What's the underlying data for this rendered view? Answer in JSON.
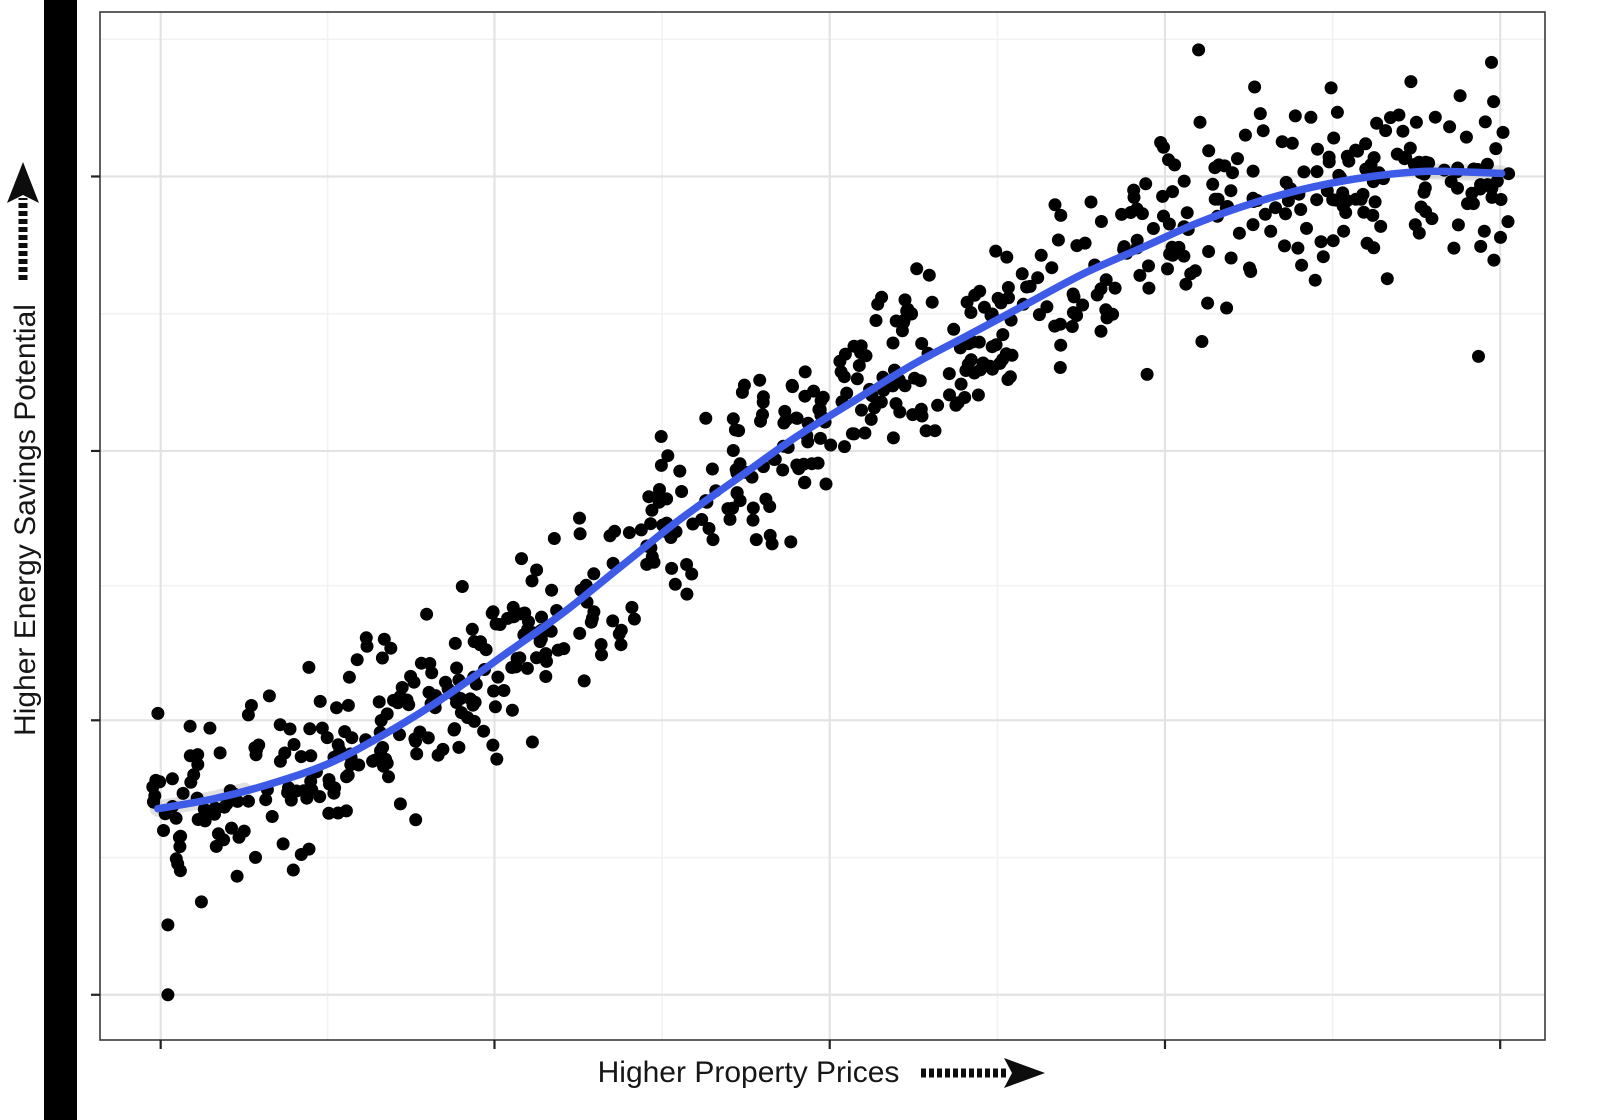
{
  "chart_data": {
    "type": "scatter",
    "title": "",
    "xlabel": "Higher Property Prices",
    "ylabel": "Higher Energy Savings Potential",
    "x_range": [
      0,
      100
    ],
    "y_range": [
      0,
      100
    ],
    "tick_labels_shown": false,
    "legend": "none",
    "grid": "major+minor",
    "axes_note": "conceptual axes: no numeric tick labels, hand-drawn arrows indicate direction of increase",
    "colors": {
      "point": "#000000",
      "trend": "#3E5BE8",
      "band": "#c9c9c9",
      "grid_major": "#e3e3e3",
      "grid_minor": "#f2f2f2",
      "panel_border": "#3a3a3a",
      "tick": "#222222"
    },
    "grid_positions": {
      "x_major": [
        4.2,
        27.3,
        50.5,
        73.7,
        96.9
      ],
      "x_minor": [
        15.75,
        38.9,
        62.1,
        85.3
      ],
      "y_major": [
        4.4,
        31.1,
        57.3,
        84.0
      ],
      "y_minor": [
        17.75,
        44.2,
        70.65,
        97.35
      ]
    },
    "trend": [
      [
        4,
        22.5
      ],
      [
        8,
        23.5
      ],
      [
        12,
        25
      ],
      [
        16,
        27
      ],
      [
        20,
        30
      ],
      [
        24,
        33.5
      ],
      [
        28,
        37.5
      ],
      [
        32,
        41.5
      ],
      [
        36,
        46
      ],
      [
        40,
        50.5
      ],
      [
        44,
        54.5
      ],
      [
        48,
        58.5
      ],
      [
        52,
        62
      ],
      [
        56,
        65.5
      ],
      [
        60,
        68.5
      ],
      [
        64,
        71.5
      ],
      [
        68,
        74.5
      ],
      [
        72,
        77
      ],
      [
        76,
        79.5
      ],
      [
        80,
        81.5
      ],
      [
        84,
        83
      ],
      [
        88,
        84
      ],
      [
        92,
        84.5
      ],
      [
        97,
        84.3
      ]
    ],
    "band_segments": [
      [
        4,
        10
      ],
      [
        91.5,
        97
      ]
    ],
    "scatter": {
      "n": 680,
      "seed": 42,
      "noise_sd": 4.3,
      "x_min": 3.5,
      "x_max": 97.5,
      "point_radius": 6.5,
      "outliers": [
        [
          4.7,
          11.2
        ],
        [
          4.7,
          4.4
        ],
        [
          96.3,
          95.1
        ],
        [
          95.4,
          66.5
        ],
        [
          79.9,
          92.7
        ]
      ]
    }
  }
}
